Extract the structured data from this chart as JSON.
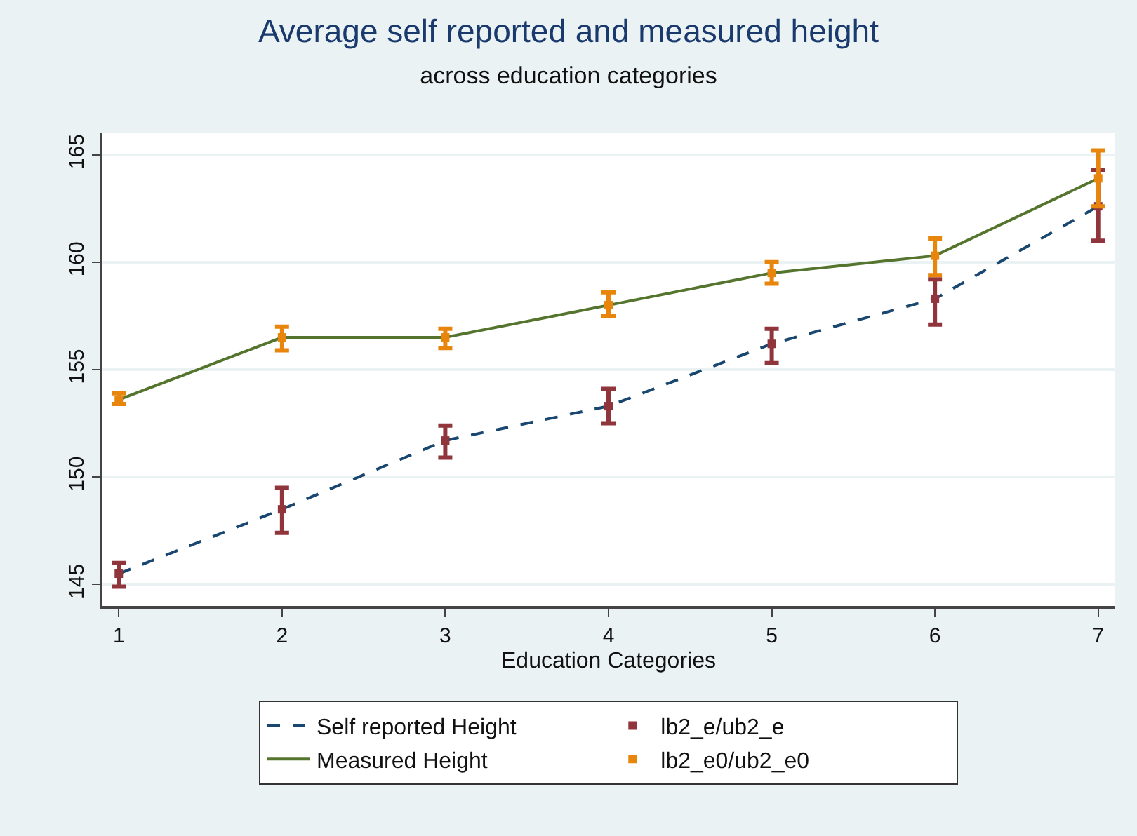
{
  "chart_data": {
    "type": "line",
    "title": "Average self reported and measured height",
    "subtitle": "across education categories",
    "xlabel": "Education Categories",
    "x": [
      1,
      2,
      3,
      4,
      5,
      6,
      7
    ],
    "series": [
      {
        "name": "Self reported Height",
        "color": "#1a476f",
        "line_style": "dashed",
        "values": [
          145.5,
          148.5,
          151.7,
          153.3,
          156.2,
          158.3,
          162.6
        ]
      },
      {
        "name": "lb2_e/ub2_e",
        "type": "scatter",
        "marker": "square",
        "color": "#90353b",
        "values": [
          145.5,
          148.5,
          151.7,
          153.3,
          156.2,
          158.3,
          162.6
        ],
        "errors": [
          [
            144.9,
            146.0
          ],
          [
            147.4,
            149.5
          ],
          [
            150.9,
            152.4
          ],
          [
            152.5,
            154.1
          ],
          [
            155.3,
            156.9
          ],
          [
            157.1,
            159.2
          ],
          [
            161.0,
            164.3
          ]
        ]
      },
      {
        "name": "Measured Height",
        "color": "#55752f",
        "line_style": "solid",
        "values": [
          153.6,
          156.5,
          156.5,
          158.0,
          159.5,
          160.3,
          163.9
        ]
      },
      {
        "name": "lb2_e0/ub2_e0",
        "type": "scatter",
        "marker": "square",
        "color": "#e8850c",
        "values": [
          153.6,
          156.5,
          156.5,
          158.0,
          159.5,
          160.3,
          163.9
        ],
        "errors": [
          [
            153.4,
            153.9
          ],
          [
            155.9,
            157.0
          ],
          [
            156.0,
            156.9
          ],
          [
            157.5,
            158.6
          ],
          [
            159.0,
            160.0
          ],
          [
            159.4,
            161.1
          ],
          [
            162.6,
            165.2
          ]
        ]
      }
    ],
    "xlim": [
      0.9,
      7.1
    ],
    "xticks": [
      1,
      2,
      3,
      4,
      5,
      6,
      7
    ],
    "ylim": [
      144,
      166
    ],
    "yticks": [
      145,
      150,
      155,
      160,
      165
    ],
    "grid": "y",
    "legend": "bottom"
  }
}
